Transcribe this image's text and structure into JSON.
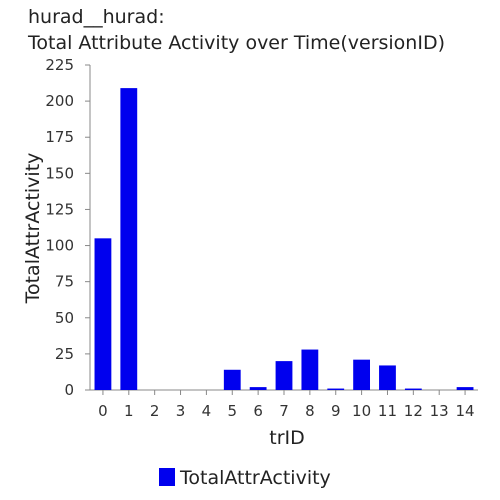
{
  "title_line1": "hurad__hurad:",
  "title_line2": "Total Attribute Activity over Time(versionID)",
  "chart_data": {
    "type": "bar",
    "categories": [
      "0",
      "1",
      "2",
      "3",
      "4",
      "5",
      "6",
      "7",
      "8",
      "9",
      "10",
      "11",
      "12",
      "13",
      "14"
    ],
    "series": [
      {
        "name": "TotalAttrActivity",
        "values": [
          105,
          209,
          0,
          0,
          0,
          14,
          2,
          20,
          28,
          1,
          21,
          17,
          1,
          0,
          2
        ]
      }
    ],
    "xlabel": "trID",
    "ylabel": "TotalAttrActivity",
    "ylim": [
      0,
      225
    ],
    "yticks": [
      0,
      25,
      50,
      75,
      100,
      125,
      150,
      175,
      200,
      225
    ],
    "grid": false,
    "legend_position": "bottom",
    "colors": {
      "bar": "#0000ee"
    }
  }
}
